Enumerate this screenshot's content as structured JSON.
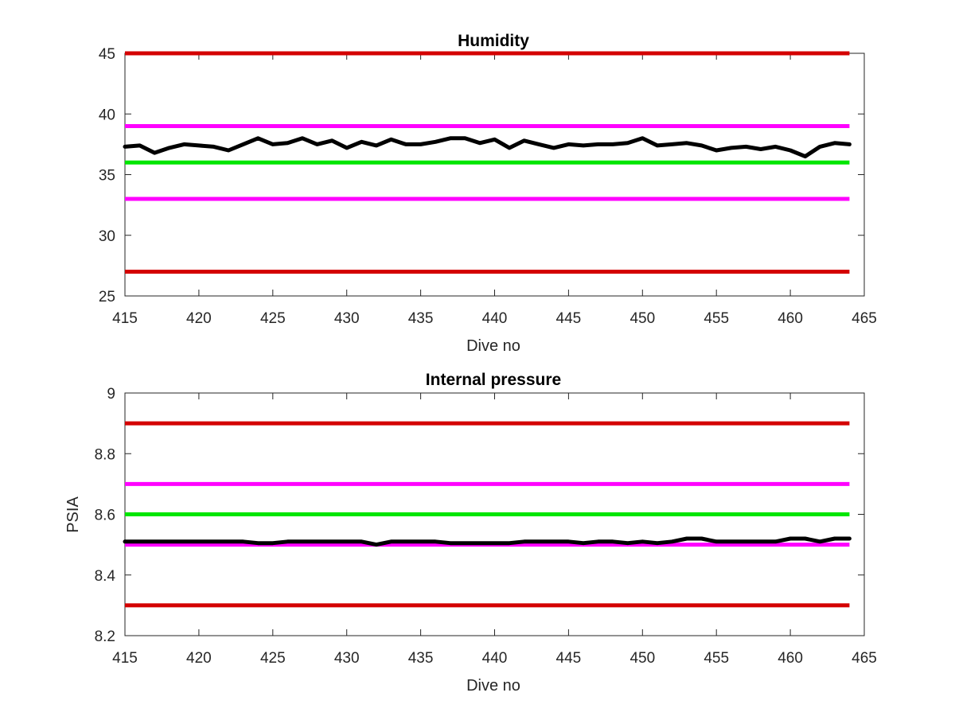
{
  "chart_data": [
    {
      "type": "line",
      "title": "Humidity",
      "xlabel": "Dive no",
      "ylabel": "",
      "xlim": [
        415,
        465
      ],
      "ylim": [
        25,
        45
      ],
      "xticks": [
        415,
        420,
        425,
        430,
        435,
        440,
        445,
        450,
        455,
        460,
        465
      ],
      "yticks": [
        25,
        30,
        35,
        40,
        45
      ],
      "grid": false,
      "threshold_lines": [
        {
          "y": 45,
          "color": "#d40000"
        },
        {
          "y": 39,
          "color": "#ff00ff"
        },
        {
          "y": 36,
          "color": "#00e600"
        },
        {
          "y": 33,
          "color": "#ff00ff"
        },
        {
          "y": 27,
          "color": "#d40000"
        }
      ],
      "series": [
        {
          "color": "#000000",
          "x": [
            415,
            416,
            417,
            418,
            419,
            420,
            421,
            422,
            423,
            424,
            425,
            426,
            427,
            428,
            429,
            430,
            431,
            432,
            433,
            434,
            435,
            436,
            437,
            438,
            439,
            440,
            441,
            442,
            443,
            444,
            445,
            446,
            447,
            448,
            449,
            450,
            451,
            452,
            453,
            454,
            455,
            456,
            457,
            458,
            459,
            460,
            461,
            462,
            463,
            464
          ],
          "y": [
            37.3,
            37.4,
            36.8,
            37.2,
            37.5,
            37.4,
            37.3,
            37.0,
            37.5,
            38.0,
            37.5,
            37.6,
            38.0,
            37.5,
            37.8,
            37.2,
            37.7,
            37.4,
            37.9,
            37.5,
            37.5,
            37.7,
            38.0,
            38.0,
            37.6,
            37.9,
            37.2,
            37.8,
            37.5,
            37.2,
            37.5,
            37.4,
            37.5,
            37.5,
            37.6,
            38.0,
            37.4,
            37.5,
            37.6,
            37.4,
            37.0,
            37.2,
            37.3,
            37.1,
            37.3,
            37.0,
            36.5,
            37.3,
            37.6,
            37.5
          ]
        }
      ]
    },
    {
      "type": "line",
      "title": "Internal pressure",
      "xlabel": "Dive no",
      "ylabel": "PSIA",
      "xlim": [
        415,
        465
      ],
      "ylim": [
        8.2,
        9.0
      ],
      "xticks": [
        415,
        420,
        425,
        430,
        435,
        440,
        445,
        450,
        455,
        460,
        465
      ],
      "yticks": [
        8.2,
        8.4,
        8.6,
        8.8,
        9.0
      ],
      "ytick_labels": [
        "8.2",
        "8.4",
        "8.6",
        "8.8",
        "9"
      ],
      "grid": false,
      "threshold_lines": [
        {
          "y": 8.9,
          "color": "#d40000"
        },
        {
          "y": 8.7,
          "color": "#ff00ff"
        },
        {
          "y": 8.6,
          "color": "#00e600"
        },
        {
          "y": 8.5,
          "color": "#ff00ff"
        },
        {
          "y": 8.3,
          "color": "#d40000"
        }
      ],
      "series": [
        {
          "color": "#000000",
          "x": [
            415,
            416,
            417,
            418,
            419,
            420,
            421,
            422,
            423,
            424,
            425,
            426,
            427,
            428,
            429,
            430,
            431,
            432,
            433,
            434,
            435,
            436,
            437,
            438,
            439,
            440,
            441,
            442,
            443,
            444,
            445,
            446,
            447,
            448,
            449,
            450,
            451,
            452,
            453,
            454,
            455,
            456,
            457,
            458,
            459,
            460,
            461,
            462,
            463,
            464
          ],
          "y": [
            8.51,
            8.51,
            8.51,
            8.51,
            8.51,
            8.51,
            8.51,
            8.51,
            8.51,
            8.505,
            8.505,
            8.51,
            8.51,
            8.51,
            8.51,
            8.51,
            8.51,
            8.5,
            8.51,
            8.51,
            8.51,
            8.51,
            8.505,
            8.505,
            8.505,
            8.505,
            8.505,
            8.51,
            8.51,
            8.51,
            8.51,
            8.505,
            8.51,
            8.51,
            8.505,
            8.51,
            8.505,
            8.51,
            8.52,
            8.52,
            8.51,
            8.51,
            8.51,
            8.51,
            8.51,
            8.52,
            8.52,
            8.51,
            8.52,
            8.52
          ]
        }
      ]
    }
  ]
}
